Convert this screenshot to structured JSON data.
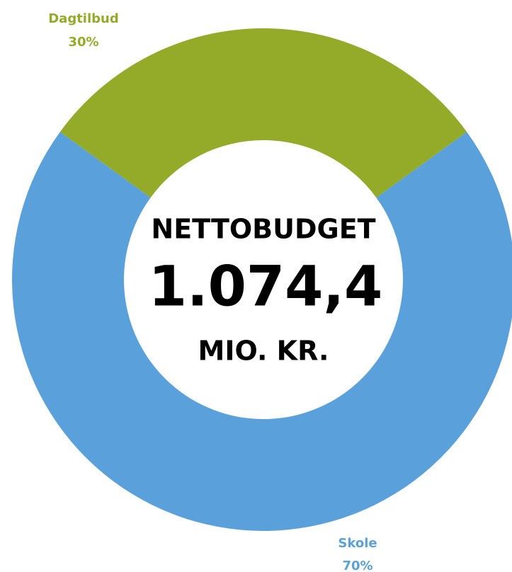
{
  "chart_data": {
    "type": "pie",
    "donut": true,
    "categories": [
      "Dagtilbud",
      "Skole"
    ],
    "values": [
      30,
      70
    ],
    "value_labels": [
      "30%",
      "70%"
    ],
    "colors": [
      "#94ab2a",
      "#5aa0da"
    ],
    "center_texts": [
      "NETTOBUDGET",
      "1.074,4",
      "MIO. KR."
    ]
  }
}
